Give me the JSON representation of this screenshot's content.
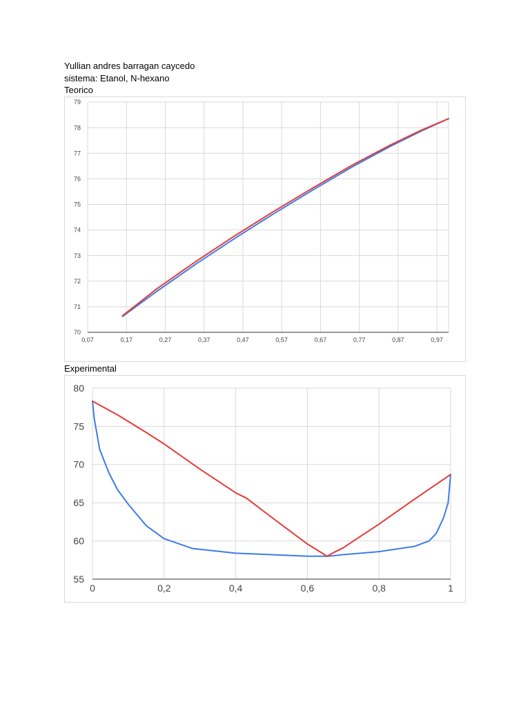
{
  "document": {
    "author": "Yullian andres barragan caycedo",
    "system": "sistema: Etanol, N-hexano",
    "section_teorico": "Teorico",
    "section_experimental": "Experimental"
  },
  "colors": {
    "red_series": "#e53935",
    "blue_series": "#3b7be8",
    "grid": "#d9d9d9"
  },
  "chart_data": [
    {
      "type": "line",
      "title": "",
      "xlabel": "",
      "ylabel": "",
      "xlim": [
        0.07,
        1.0
      ],
      "ylim": [
        70,
        79
      ],
      "grid": true,
      "legend": "none",
      "x_ticks": [
        0.07,
        0.17,
        0.27,
        0.37,
        0.47,
        0.57,
        0.67,
        0.77,
        0.87,
        0.97
      ],
      "x_tick_labels": [
        "0,07",
        "0,17",
        "0,27",
        "0,37",
        "0,47",
        "0,57",
        "0,67",
        "0,77",
        "0,87",
        "0,97"
      ],
      "y_ticks": [
        70,
        71,
        72,
        73,
        74,
        75,
        76,
        77,
        78,
        79
      ],
      "y_tick_labels": [
        "70",
        "71",
        "72",
        "73",
        "74",
        "75",
        "76",
        "77",
        "78",
        "79"
      ],
      "series": [
        {
          "color": "#3b7be8",
          "x": [
            0.16,
            0.25,
            0.35,
            0.45,
            0.55,
            0.65,
            0.75,
            0.85,
            0.93,
            1.0
          ],
          "y": [
            70.62,
            71.62,
            72.68,
            73.68,
            74.64,
            75.56,
            76.45,
            77.27,
            77.87,
            78.35
          ]
        },
        {
          "color": "#e53935",
          "x": [
            0.16,
            0.25,
            0.35,
            0.45,
            0.55,
            0.65,
            0.75,
            0.85,
            0.93,
            1.0
          ],
          "y": [
            70.65,
            71.72,
            72.78,
            73.78,
            74.73,
            75.64,
            76.52,
            77.32,
            77.9,
            78.35
          ]
        }
      ]
    },
    {
      "type": "line",
      "title": "",
      "xlabel": "",
      "ylabel": "",
      "xlim": [
        0,
        1
      ],
      "ylim": [
        55,
        80
      ],
      "grid": true,
      "legend": "none",
      "x_ticks": [
        0,
        0.2,
        0.4,
        0.6,
        0.8,
        1.0
      ],
      "x_tick_labels": [
        "0",
        "0,2",
        "0,4",
        "0,6",
        "0,8",
        "1"
      ],
      "y_ticks": [
        55,
        60,
        65,
        70,
        75,
        80
      ],
      "y_tick_labels": [
        "55",
        "60",
        "65",
        "70",
        "75",
        "80"
      ],
      "series": [
        {
          "color": "#3b7be8",
          "x": [
            0,
            0.005,
            0.02,
            0.045,
            0.07,
            0.1,
            0.15,
            0.2,
            0.28,
            0.4,
            0.5,
            0.6,
            0.66,
            0.7,
            0.8,
            0.9,
            0.94,
            0.96,
            0.98,
            0.993,
            1.0
          ],
          "y": [
            78.3,
            76.0,
            72.0,
            69.0,
            66.7,
            64.8,
            62.0,
            60.3,
            59.0,
            58.4,
            58.2,
            58.0,
            58.0,
            58.2,
            58.6,
            59.3,
            60.0,
            61.0,
            63.0,
            65.0,
            68.7
          ]
        },
        {
          "color": "#e53935",
          "x": [
            0,
            0.07,
            0.15,
            0.2,
            0.3,
            0.4,
            0.43,
            0.5,
            0.6,
            0.655,
            0.67,
            0.7,
            0.8,
            0.9,
            1.0
          ],
          "y": [
            78.3,
            76.5,
            74.2,
            72.7,
            69.4,
            66.3,
            65.6,
            63.1,
            59.6,
            58.0,
            58.4,
            59.1,
            62.2,
            65.5,
            68.7
          ]
        }
      ]
    }
  ]
}
